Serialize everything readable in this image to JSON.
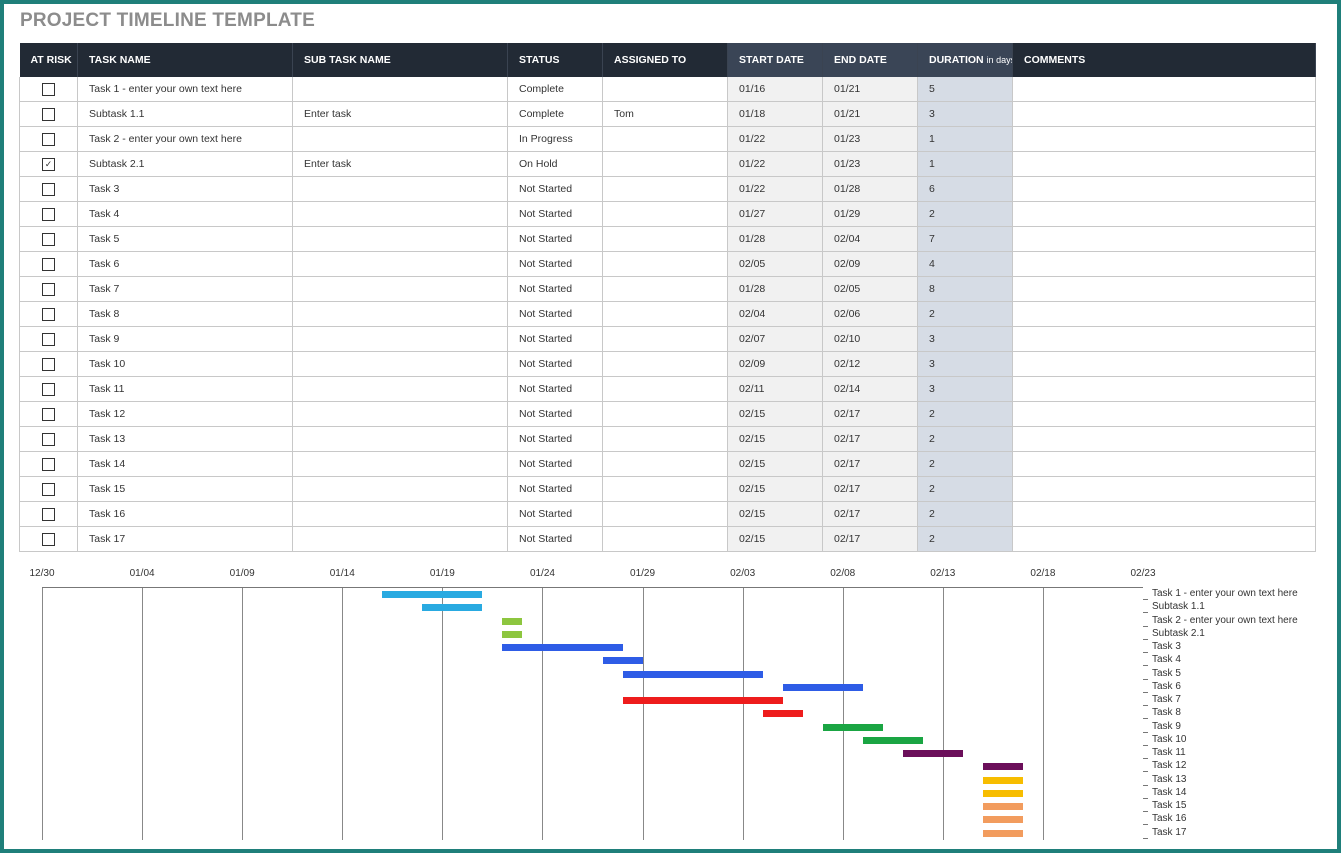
{
  "title": "PROJECT TIMELINE TEMPLATE",
  "columns": {
    "at_risk": "AT RISK",
    "task_name": "TASK NAME",
    "sub_task_name": "SUB TASK NAME",
    "status": "STATUS",
    "assigned_to": "ASSIGNED TO",
    "start_date": "START DATE",
    "end_date": "END DATE",
    "duration": "DURATION",
    "duration_unit": "in days",
    "comments": "COMMENTS"
  },
  "rows": [
    {
      "at_risk": false,
      "task": "Task 1 - enter your own text here",
      "sub": "",
      "status": "Complete",
      "assigned": "",
      "start": "01/16",
      "end": "01/21",
      "duration": "5",
      "comments": ""
    },
    {
      "at_risk": false,
      "task": "Subtask 1.1",
      "sub": "Enter task",
      "status": "Complete",
      "assigned": "Tom",
      "start": "01/18",
      "end": "01/21",
      "duration": "3",
      "comments": ""
    },
    {
      "at_risk": false,
      "task": "Task 2 - enter your own text here",
      "sub": "",
      "status": "In Progress",
      "assigned": "",
      "start": "01/22",
      "end": "01/23",
      "duration": "1",
      "comments": ""
    },
    {
      "at_risk": true,
      "task": "Subtask 2.1",
      "sub": "Enter task",
      "status": "On Hold",
      "assigned": "",
      "start": "01/22",
      "end": "01/23",
      "duration": "1",
      "comments": ""
    },
    {
      "at_risk": false,
      "task": "Task 3",
      "sub": "",
      "status": "Not Started",
      "assigned": "",
      "start": "01/22",
      "end": "01/28",
      "duration": "6",
      "comments": ""
    },
    {
      "at_risk": false,
      "task": "Task 4",
      "sub": "",
      "status": "Not Started",
      "assigned": "",
      "start": "01/27",
      "end": "01/29",
      "duration": "2",
      "comments": ""
    },
    {
      "at_risk": false,
      "task": "Task 5",
      "sub": "",
      "status": "Not Started",
      "assigned": "",
      "start": "01/28",
      "end": "02/04",
      "duration": "7",
      "comments": ""
    },
    {
      "at_risk": false,
      "task": "Task 6",
      "sub": "",
      "status": "Not Started",
      "assigned": "",
      "start": "02/05",
      "end": "02/09",
      "duration": "4",
      "comments": ""
    },
    {
      "at_risk": false,
      "task": "Task 7",
      "sub": "",
      "status": "Not Started",
      "assigned": "",
      "start": "01/28",
      "end": "02/05",
      "duration": "8",
      "comments": ""
    },
    {
      "at_risk": false,
      "task": "Task 8",
      "sub": "",
      "status": "Not Started",
      "assigned": "",
      "start": "02/04",
      "end": "02/06",
      "duration": "2",
      "comments": ""
    },
    {
      "at_risk": false,
      "task": "Task 9",
      "sub": "",
      "status": "Not Started",
      "assigned": "",
      "start": "02/07",
      "end": "02/10",
      "duration": "3",
      "comments": ""
    },
    {
      "at_risk": false,
      "task": "Task 10",
      "sub": "",
      "status": "Not Started",
      "assigned": "",
      "start": "02/09",
      "end": "02/12",
      "duration": "3",
      "comments": ""
    },
    {
      "at_risk": false,
      "task": "Task 11",
      "sub": "",
      "status": "Not Started",
      "assigned": "",
      "start": "02/11",
      "end": "02/14",
      "duration": "3",
      "comments": ""
    },
    {
      "at_risk": false,
      "task": "Task 12",
      "sub": "",
      "status": "Not Started",
      "assigned": "",
      "start": "02/15",
      "end": "02/17",
      "duration": "2",
      "comments": ""
    },
    {
      "at_risk": false,
      "task": "Task 13",
      "sub": "",
      "status": "Not Started",
      "assigned": "",
      "start": "02/15",
      "end": "02/17",
      "duration": "2",
      "comments": ""
    },
    {
      "at_risk": false,
      "task": "Task 14",
      "sub": "",
      "status": "Not Started",
      "assigned": "",
      "start": "02/15",
      "end": "02/17",
      "duration": "2",
      "comments": ""
    },
    {
      "at_risk": false,
      "task": "Task 15",
      "sub": "",
      "status": "Not Started",
      "assigned": "",
      "start": "02/15",
      "end": "02/17",
      "duration": "2",
      "comments": ""
    },
    {
      "at_risk": false,
      "task": "Task 16",
      "sub": "",
      "status": "Not Started",
      "assigned": "",
      "start": "02/15",
      "end": "02/17",
      "duration": "2",
      "comments": ""
    },
    {
      "at_risk": false,
      "task": "Task 17",
      "sub": "",
      "status": "Not Started",
      "assigned": "",
      "start": "02/15",
      "end": "02/17",
      "duration": "2",
      "comments": ""
    }
  ],
  "chart_data": {
    "type": "bar",
    "orientation": "horizontal-gantt",
    "x_ticks": [
      "12/30",
      "01/04",
      "01/09",
      "01/14",
      "01/19",
      "01/24",
      "01/29",
      "02/03",
      "02/08",
      "02/13",
      "02/18",
      "02/23"
    ],
    "xlim": [
      "12/30",
      "02/23"
    ],
    "grid": true,
    "legend": "right",
    "tasks": [
      {
        "name": "Task 1 - enter your own text here",
        "start": "01/16",
        "end": "01/21",
        "color": "#29aae1"
      },
      {
        "name": "Subtask 1.1",
        "start": "01/18",
        "end": "01/21",
        "color": "#29aae1"
      },
      {
        "name": "Task 2 - enter your own text here",
        "start": "01/22",
        "end": "01/23",
        "color": "#8dc63f"
      },
      {
        "name": "Subtask 2.1",
        "start": "01/22",
        "end": "01/23",
        "color": "#8dc63f"
      },
      {
        "name": "Task 3",
        "start": "01/22",
        "end": "01/28",
        "color": "#2e5ce6"
      },
      {
        "name": "Task 4",
        "start": "01/27",
        "end": "01/29",
        "color": "#2e5ce6"
      },
      {
        "name": "Task 5",
        "start": "01/28",
        "end": "02/04",
        "color": "#2e5ce6"
      },
      {
        "name": "Task 6",
        "start": "02/05",
        "end": "02/09",
        "color": "#2e5ce6"
      },
      {
        "name": "Task 7",
        "start": "01/28",
        "end": "02/05",
        "color": "#ee1c1c"
      },
      {
        "name": "Task 8",
        "start": "02/04",
        "end": "02/06",
        "color": "#ee1c1c"
      },
      {
        "name": "Task 9",
        "start": "02/07",
        "end": "02/10",
        "color": "#1aa543"
      },
      {
        "name": "Task 10",
        "start": "02/09",
        "end": "02/12",
        "color": "#1aa543"
      },
      {
        "name": "Task 11",
        "start": "02/11",
        "end": "02/14",
        "color": "#6b0f5a"
      },
      {
        "name": "Task 12",
        "start": "02/15",
        "end": "02/17",
        "color": "#6b0f5a"
      },
      {
        "name": "Task 13",
        "start": "02/15",
        "end": "02/17",
        "color": "#f7bd00"
      },
      {
        "name": "Task 14",
        "start": "02/15",
        "end": "02/17",
        "color": "#f7bd00"
      },
      {
        "name": "Task 15",
        "start": "02/15",
        "end": "02/17",
        "color": "#f29c5e"
      },
      {
        "name": "Task 16",
        "start": "02/15",
        "end": "02/17",
        "color": "#f29c5e"
      },
      {
        "name": "Task 17",
        "start": "02/15",
        "end": "02/17",
        "color": "#f29c5e"
      }
    ]
  }
}
